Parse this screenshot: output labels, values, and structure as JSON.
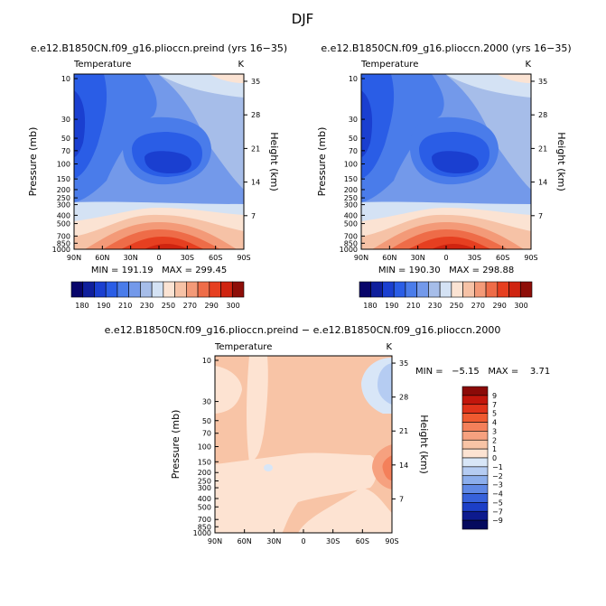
{
  "chart_data": {
    "type": "contour",
    "title": "DJF",
    "panels": [
      {
        "id": "preind",
        "type": "contour",
        "title": "e.e12.B1850CN.f09_g16.plioccn.preind (yrs 16−35)",
        "left_label": "Temperature",
        "right_label": "K",
        "xlabel": "",
        "ylabel": "Pressure (mb)",
        "ylabel_right": "Height (km)",
        "x_ticks": [
          "90N",
          "60N",
          "30N",
          "0",
          "30S",
          "60S",
          "90S"
        ],
        "y_ticks": [
          "10",
          "30",
          "50",
          "70",
          "100",
          "150",
          "200",
          "250",
          "300",
          "400",
          "500",
          "700",
          "850",
          "1000"
        ],
        "height_ticks": [
          "35",
          "28",
          "21",
          "14",
          "7"
        ],
        "stats": "MIN = 191.19   MAX = 299.45",
        "min": 191.19,
        "max": 299.45,
        "colorbar_levels": [
          "180",
          "190",
          "210",
          "230",
          "250",
          "270",
          "290",
          "300"
        ]
      },
      {
        "id": "y2000",
        "type": "contour",
        "title": "e.e12.B1850CN.f09_g16.plioccn.2000 (yrs 16−35)",
        "left_label": "Temperature",
        "right_label": "K",
        "xlabel": "",
        "ylabel": "Pressure (mb)",
        "ylabel_right": "Height (km)",
        "x_ticks": [
          "90N",
          "60N",
          "30N",
          "0",
          "30S",
          "60S",
          "90S"
        ],
        "y_ticks": [
          "10",
          "30",
          "50",
          "70",
          "100",
          "150",
          "200",
          "250",
          "300",
          "400",
          "500",
          "700",
          "850",
          "1000"
        ],
        "height_ticks": [
          "35",
          "28",
          "21",
          "14",
          "7"
        ],
        "stats": "MIN = 190.30   MAX = 298.88",
        "min": 190.3,
        "max": 298.88,
        "colorbar_levels": [
          "180",
          "190",
          "210",
          "230",
          "250",
          "270",
          "290",
          "300"
        ]
      },
      {
        "id": "diff",
        "type": "contour",
        "title": "e.e12.B1850CN.f09_g16.plioccn.preind − e.e12.B1850CN.f09_g16.plioccn.2000",
        "left_label": "Temperature",
        "right_label": "K",
        "xlabel": "",
        "ylabel": "Pressure (mb)",
        "ylabel_right": "Height (km)",
        "x_ticks": [
          "90N",
          "60N",
          "30N",
          "0",
          "30S",
          "60S",
          "90S"
        ],
        "y_ticks": [
          "10",
          "30",
          "50",
          "70",
          "100",
          "150",
          "200",
          "250",
          "300",
          "400",
          "500",
          "700",
          "850",
          "1000"
        ],
        "height_ticks": [
          "35",
          "28",
          "21",
          "14",
          "7"
        ],
        "stats": "MIN =   −5.15   MAX =    3.71",
        "min": -5.15,
        "max": 3.71,
        "colorbar_levels": [
          "9",
          "7",
          "5",
          "4",
          "3",
          "2",
          "1",
          "0",
          "−1",
          "−2",
          "−3",
          "−4",
          "−5",
          "−7",
          "−9"
        ]
      }
    ]
  },
  "colors": {
    "temp_palette": [
      "#08056a",
      "#0f1f9c",
      "#1a3fd0",
      "#2a5de6",
      "#4a7cea",
      "#7399ea",
      "#a6bde9",
      "#d4e2f4",
      "#fbe3d3",
      "#f6c2a6",
      "#f39a78",
      "#ee6c48",
      "#e63f20",
      "#cf2410",
      "#8e0e08"
    ],
    "diff_palette": [
      "#8b0a08",
      "#c2160c",
      "#e0331a",
      "#ef5a30",
      "#f4805a",
      "#f6a17f",
      "#f8c4a6",
      "#fde3d2",
      "#d8e6f7",
      "#b5ccf2",
      "#8caeec",
      "#6089e5",
      "#3762db",
      "#1c3fc7",
      "#0d1a8e",
      "#050a5e"
    ]
  }
}
